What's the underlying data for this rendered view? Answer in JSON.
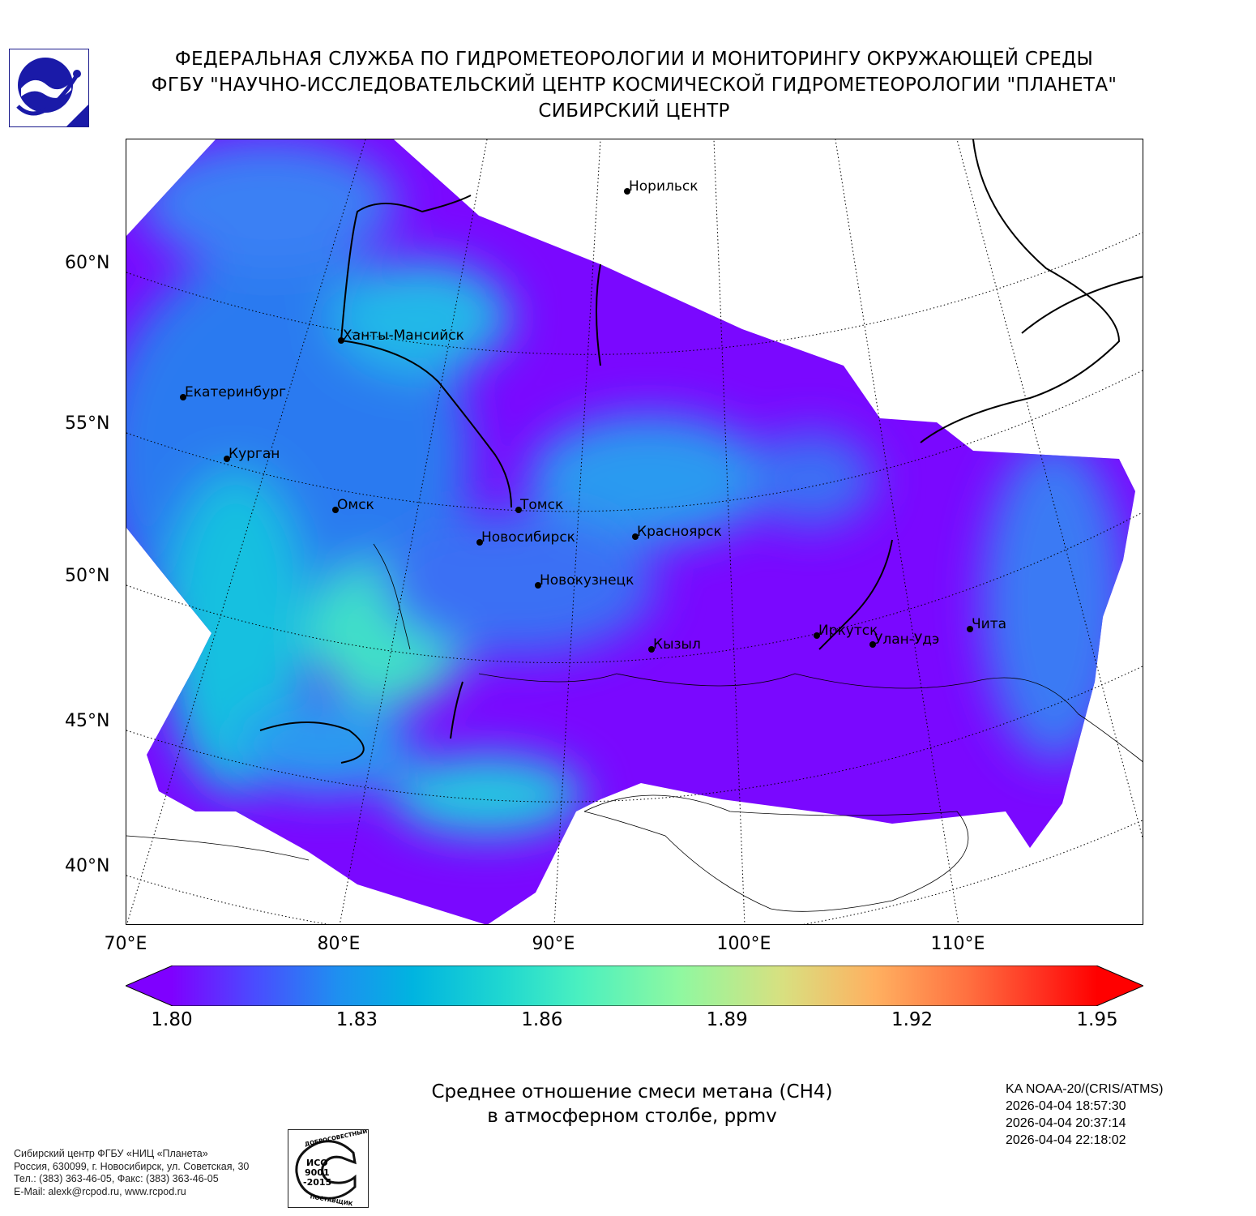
{
  "header": {
    "line1": "ФЕДЕРАЛЬНАЯ СЛУЖБА ПО ГИДРОМЕТЕОРОЛОГИИ И МОНИТОРИНГУ ОКРУЖАЮЩЕЙ СРЕДЫ",
    "line2": "ФГБУ \"НАУЧНО-ИССЛЕДОВАТЕЛЬСКИЙ ЦЕНТР КОСМИЧЕСКОЙ ГИДРОМЕТЕОРОЛОГИИ \"ПЛАНЕТА\"",
    "line3": "СИБИРСКИЙ ЦЕНТР"
  },
  "map": {
    "lat_labels": [
      "60°N",
      "55°N",
      "50°N",
      "45°N",
      "40°N"
    ],
    "lon_labels": [
      "70°E",
      "80°E",
      "90°E",
      "100°E",
      "110°E"
    ],
    "cities": [
      "Норильск",
      "Ханты-Мансийск",
      "Екатеринбург",
      "Курган",
      "Омск",
      "Томск",
      "Новосибирск",
      "Красноярск",
      "Новокузнецк",
      "Кызыл",
      "Иркутск",
      "Улан-Удэ",
      "Чита"
    ]
  },
  "colorbar": {
    "ticks": [
      "1.80",
      "1.83",
      "1.86",
      "1.89",
      "1.92",
      "1.95"
    ],
    "colors": [
      "#7f00ff",
      "#4a4cff",
      "#1e90f0",
      "#00b4e0",
      "#20d8d0",
      "#4af0c0",
      "#90f8a0",
      "#d8e080",
      "#ffb060",
      "#ff7040",
      "#ff3020",
      "#ff0000"
    ]
  },
  "caption": {
    "line1": "Среднее отношение смеси метана (CH4)",
    "line2": "в атмосферном столбе, ppmv"
  },
  "satellite": {
    "name": "KA NOAA-20/(CRIS/ATMS)",
    "times": [
      "2026-04-04 18:57:30",
      "2026-04-04 20:37:14",
      "2026-04-04 22:18:02"
    ]
  },
  "footer": {
    "org": "Сибирский центр ФГБУ «НИЦ «Планета»",
    "address": "Россия, 630099, г. Новосибирск, ул. Советская, 30",
    "phone": "Тел.: (383) 363-46-05, Факс: (383) 363-46-05",
    "email": "E-Mail: alexk@rcpod.ru, www.rcpod.ru",
    "iso_badge": [
      "ДОБРОСОВЕСТНЫЙ",
      "ИСО",
      "9001",
      "-2015",
      "ПОСТАВЩИК"
    ]
  }
}
